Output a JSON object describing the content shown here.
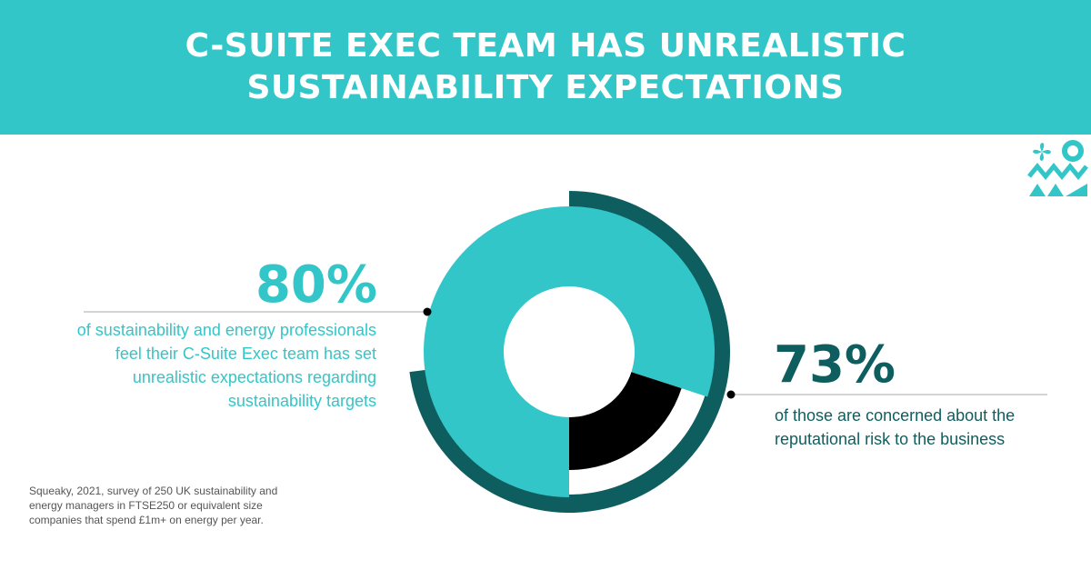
{
  "header": {
    "title": "C-SUITE EXEC TEAM HAS UNREALISTIC SUSTAINABILITY EXPECTATIONS"
  },
  "chart_data": {
    "type": "pie",
    "title": "",
    "rings": [
      {
        "name": "",
        "value": 73,
        "color": "#0f5e5f"
      },
      {
        "name": "",
        "value": 80,
        "color": "#33c6c8"
      },
      {
        "name": "",
        "value": 20,
        "color": "#000000"
      }
    ],
    "legend": "none"
  },
  "stats": {
    "left": {
      "value": "80%",
      "text": "of sustainability and energy professionals feel their C-Suite Exec team has set unrealistic expectations regarding sustainability targets"
    },
    "right": {
      "value": "73%",
      "text": "of those are concerned about the reputational risk to the business"
    }
  },
  "source": "Squeaky, 2021, survey of 250 UK sustainability and energy managers in FTSE250 or equivalent size companies that spend £1m+ on energy per year.",
  "colors": {
    "teal": "#33c6c8",
    "dark_teal": "#0f5e5f",
    "black": "#000000",
    "white": "#ffffff"
  },
  "logo": {
    "icon": "brand-logo-icon"
  }
}
